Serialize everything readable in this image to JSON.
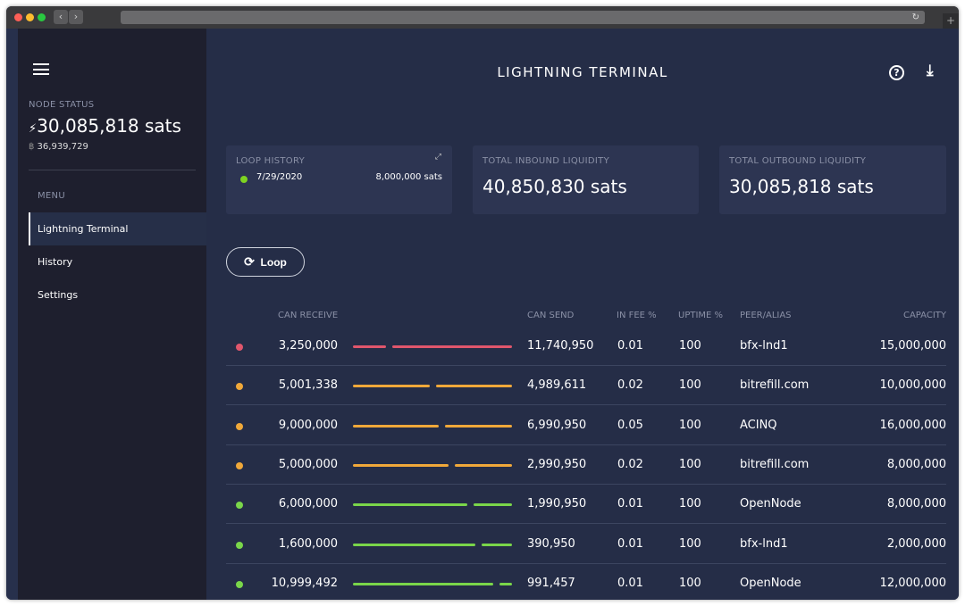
{
  "app": {
    "title": "LIGHTNING TERMINAL"
  },
  "sidebar": {
    "node_status_label": "NODE STATUS",
    "balance": "30,085,818 sats",
    "btc_balance": "36,939,729",
    "menu_label": "MENU",
    "items": [
      {
        "label": "Lightning Terminal",
        "active": true
      },
      {
        "label": "History"
      },
      {
        "label": "Settings"
      }
    ]
  },
  "cards": {
    "loop_history": {
      "label": "LOOP HISTORY",
      "date": "7/29/2020",
      "amount": "8,000,000 sats",
      "status_color": "#7ed321"
    },
    "inbound": {
      "label": "TOTAL INBOUND LIQUIDITY",
      "value": "40,850,830 sats"
    },
    "outbound": {
      "label": "TOTAL OUTBOUND LIQUIDITY",
      "value": "30,085,818 sats"
    }
  },
  "loop_button": {
    "label": "Loop"
  },
  "table": {
    "headers": [
      "CAN RECEIVE",
      "CAN SEND",
      "IN FEE %",
      "UPTIME %",
      "PEER/ALIAS",
      "CAPACITY"
    ],
    "rows": [
      {
        "status": "red",
        "can_receive": "3,250,000",
        "can_send": "11,740,950",
        "in_fee": "0.01",
        "uptime": "100",
        "peer": "bfx-lnd1",
        "capacity": "15,000,000"
      },
      {
        "status": "orange",
        "can_receive": "5,001,338",
        "can_send": "4,989,611",
        "in_fee": "0.02",
        "uptime": "100",
        "peer": "bitrefill.com",
        "capacity": "10,000,000"
      },
      {
        "status": "orange",
        "can_receive": "9,000,000",
        "can_send": "6,990,950",
        "in_fee": "0.05",
        "uptime": "100",
        "peer": "ACINQ",
        "capacity": "16,000,000"
      },
      {
        "status": "orange",
        "can_receive": "5,000,000",
        "can_send": "2,990,950",
        "in_fee": "0.02",
        "uptime": "100",
        "peer": "bitrefill.com",
        "capacity": "8,000,000"
      },
      {
        "status": "green",
        "can_receive": "6,000,000",
        "can_send": "1,990,950",
        "in_fee": "0.01",
        "uptime": "100",
        "peer": "OpenNode",
        "capacity": "8,000,000"
      },
      {
        "status": "green",
        "can_receive": "1,600,000",
        "can_send": "390,950",
        "in_fee": "0.01",
        "uptime": "100",
        "peer": "bfx-lnd1",
        "capacity": "2,000,000"
      },
      {
        "status": "green",
        "can_receive": "10,999,492",
        "can_send": "991,457",
        "in_fee": "0.01",
        "uptime": "100",
        "peer": "OpenNode",
        "capacity": "12,000,000"
      }
    ]
  },
  "colors": {
    "red": "#e0566c",
    "orange": "#f0a83a",
    "green": "#7ad64a"
  }
}
